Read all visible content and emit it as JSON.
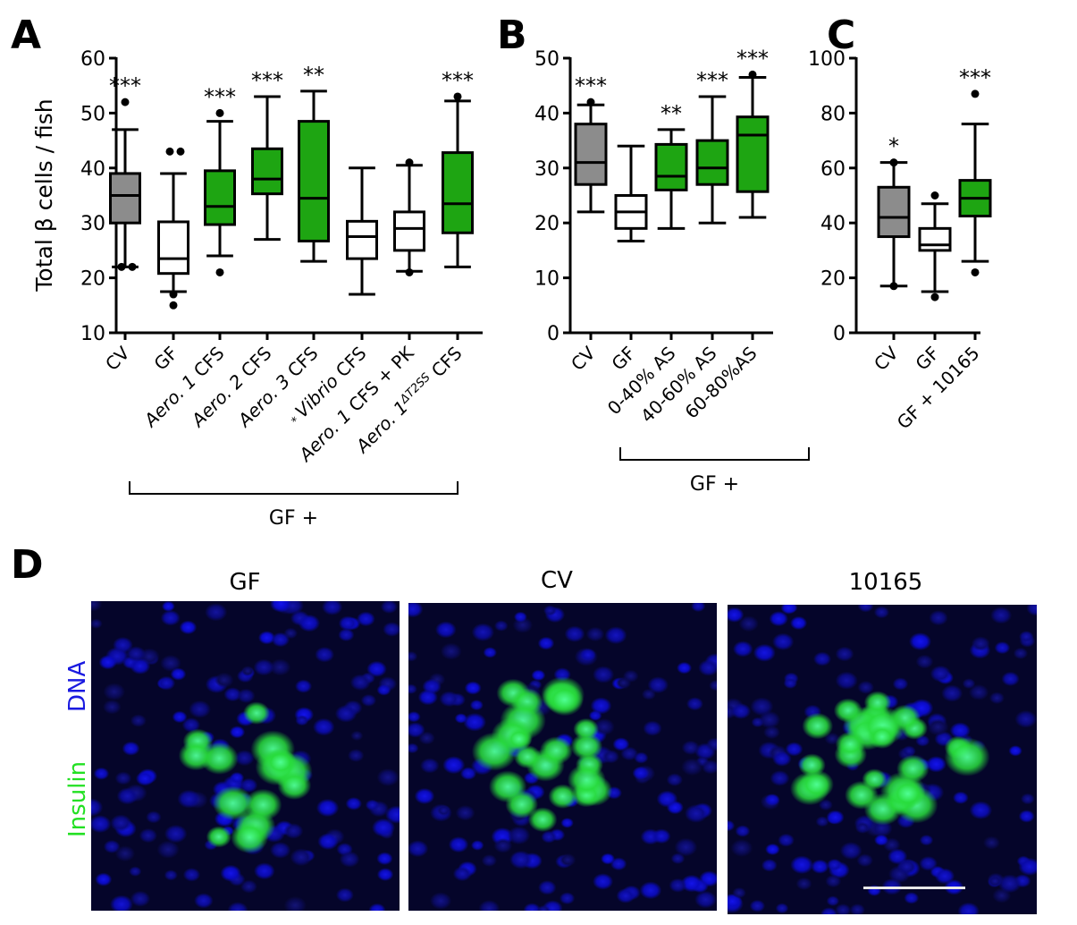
{
  "panel_letters": {
    "A": "A",
    "B": "B",
    "C": "C",
    "D": "D"
  },
  "colors": {
    "cv": "#8c8c8c",
    "gf": "#ffffff",
    "treated": "#1ea512",
    "dna": "#1010d8",
    "insulin": "#22e022"
  },
  "chart_data": [
    {
      "type": "box",
      "panel": "A",
      "ylabel": "Total β cells / fish",
      "ylim": [
        10,
        60
      ],
      "yticks": [
        10,
        20,
        30,
        40,
        50,
        60
      ],
      "bracket_label": "GF +",
      "categories": [
        {
          "parts": [
            {
              "t": "CV"
            }
          ]
        },
        {
          "parts": [
            {
              "t": "GF"
            }
          ]
        },
        {
          "parts": [
            {
              "t": "Aero. 1",
              "i": true
            },
            {
              "t": " CFS"
            }
          ]
        },
        {
          "parts": [
            {
              "t": "Aero. 2",
              "i": true
            },
            {
              "t": " CFS"
            }
          ]
        },
        {
          "parts": [
            {
              "t": "Aero. 3",
              "i": true
            },
            {
              "t": " CFS"
            }
          ]
        },
        {
          "parts": [
            {
              "t": "* ",
              "s": true
            },
            {
              "t": "Vibrio",
              "i": true
            },
            {
              "t": " CFS"
            }
          ]
        },
        {
          "parts": [
            {
              "t": "Aero. 1",
              "i": true
            },
            {
              "t": " CFS + PK"
            }
          ]
        },
        {
          "parts": [
            {
              "t": "Aero. 1",
              "i": true
            },
            {
              "t": "ΔT2SS",
              "i": true,
              "sup": true
            },
            {
              "t": " CFS"
            }
          ]
        }
      ],
      "boxes": [
        {
          "fill": "cv",
          "min": 22,
          "q1": 30,
          "median": 35,
          "q3": 39,
          "max": 47,
          "outliers": [
            52,
            22,
            22
          ],
          "sig": "***"
        },
        {
          "fill": "gf",
          "min": 17.5,
          "q1": 20.8,
          "median": 23.5,
          "q3": 30.2,
          "max": 39,
          "outliers": [
            43,
            43,
            17,
            15
          ],
          "sig": ""
        },
        {
          "fill": "treated",
          "min": 24,
          "q1": 29.7,
          "median": 33,
          "q3": 39.5,
          "max": 48.5,
          "outliers": [
            50,
            21
          ],
          "sig": "***"
        },
        {
          "fill": "treated",
          "min": 27,
          "q1": 35.3,
          "median": 38,
          "q3": 43.5,
          "max": 53,
          "outliers": [],
          "sig": "***"
        },
        {
          "fill": "treated",
          "min": 23,
          "q1": 26.7,
          "median": 34.5,
          "q3": 48.5,
          "max": 54,
          "outliers": [],
          "sig": "**"
        },
        {
          "fill": "gf",
          "min": 17,
          "q1": 23.5,
          "median": 27.5,
          "q3": 30.3,
          "max": 40,
          "outliers": [],
          "sig": ""
        },
        {
          "fill": "gf",
          "min": 21.2,
          "q1": 25,
          "median": 29,
          "q3": 32,
          "max": 40.5,
          "outliers": [
            41,
            21
          ],
          "sig": ""
        },
        {
          "fill": "treated",
          "min": 22,
          "q1": 28.2,
          "median": 33.5,
          "q3": 42.8,
          "max": 52.2,
          "outliers": [
            53
          ],
          "sig": "***"
        }
      ]
    },
    {
      "type": "box",
      "panel": "B",
      "ylabel": "",
      "ylim": [
        0,
        50
      ],
      "yticks": [
        0,
        10,
        20,
        30,
        40,
        50
      ],
      "bracket_label": "GF +",
      "categories": [
        {
          "parts": [
            {
              "t": "CV"
            }
          ]
        },
        {
          "parts": [
            {
              "t": "GF"
            }
          ]
        },
        {
          "parts": [
            {
              "t": "0-40% AS"
            }
          ]
        },
        {
          "parts": [
            {
              "t": "40-60% AS"
            }
          ]
        },
        {
          "parts": [
            {
              "t": "60-80%AS"
            }
          ]
        }
      ],
      "boxes": [
        {
          "fill": "cv",
          "min": 22,
          "q1": 27,
          "median": 31,
          "q3": 38,
          "max": 41.5,
          "outliers": [
            42
          ],
          "sig": "***"
        },
        {
          "fill": "gf",
          "min": 16.7,
          "q1": 19,
          "median": 22,
          "q3": 25,
          "max": 34,
          "outliers": [],
          "sig": ""
        },
        {
          "fill": "treated",
          "min": 19,
          "q1": 26,
          "median": 28.5,
          "q3": 34.3,
          "max": 37,
          "outliers": [],
          "sig": "**"
        },
        {
          "fill": "treated",
          "min": 20,
          "q1": 27,
          "median": 30,
          "q3": 35,
          "max": 43,
          "outliers": [],
          "sig": "***"
        },
        {
          "fill": "treated",
          "min": 21,
          "q1": 25.7,
          "median": 36,
          "q3": 39.3,
          "max": 46.5,
          "outliers": [
            47
          ],
          "sig": "***"
        }
      ]
    },
    {
      "type": "box",
      "panel": "C",
      "ylabel": "",
      "ylim": [
        0,
        100
      ],
      "yticks": [
        0,
        20,
        40,
        60,
        80,
        100
      ],
      "bracket_label": "",
      "categories": [
        {
          "parts": [
            {
              "t": "CV"
            }
          ]
        },
        {
          "parts": [
            {
              "t": "GF"
            }
          ]
        },
        {
          "parts": [
            {
              "t": "GF + 10165"
            }
          ]
        }
      ],
      "boxes": [
        {
          "fill": "cv",
          "min": 17,
          "q1": 35,
          "median": 42,
          "q3": 53,
          "max": 62,
          "outliers": [
            62,
            17
          ],
          "sig": "*"
        },
        {
          "fill": "gf",
          "min": 15,
          "q1": 30,
          "median": 32,
          "q3": 38,
          "max": 47,
          "outliers": [
            50,
            13
          ],
          "sig": ""
        },
        {
          "fill": "treated",
          "min": 26,
          "q1": 42.5,
          "median": 49,
          "q3": 55.5,
          "max": 76,
          "outliers": [
            87,
            22
          ],
          "sig": "***"
        }
      ]
    }
  ],
  "panel_d": {
    "images": [
      {
        "title": "GF"
      },
      {
        "title": "CV"
      },
      {
        "title": "10165"
      }
    ],
    "legend": {
      "dna": "DNA",
      "insulin": "Insulin"
    }
  }
}
